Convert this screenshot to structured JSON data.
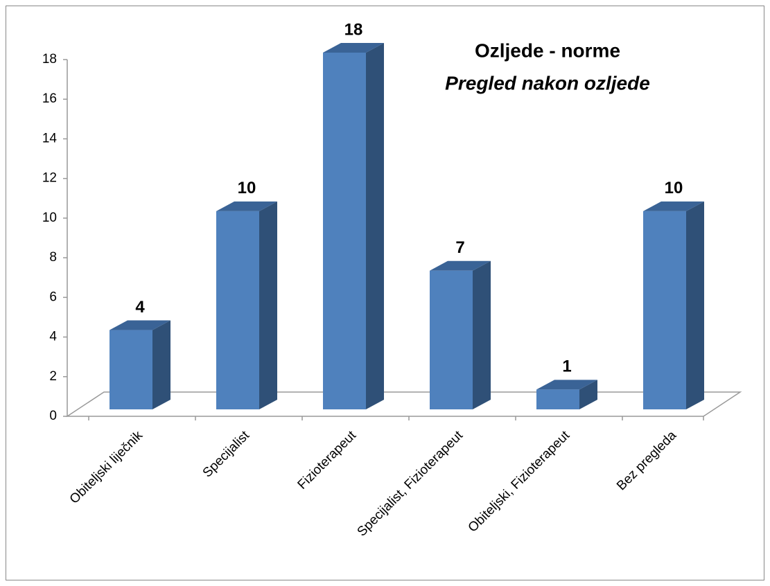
{
  "chart_data": {
    "type": "bar3d",
    "title": "Ozljede - norme",
    "subtitle": "Pregled nakon ozljede",
    "categories": [
      "Obiteljski liječnik",
      "Specijalist",
      "Fizioterapeut",
      "Specijalist, Fizioterapeut",
      "Obiteljski, Fizioterapeut",
      "Bez pregleda"
    ],
    "values": [
      4,
      10,
      18,
      7,
      1,
      10
    ],
    "color": "#4f81bd",
    "ylim": [
      0,
      18
    ],
    "yticks": [
      0,
      2,
      4,
      6,
      8,
      10,
      12,
      14,
      16,
      18
    ],
    "grid": false
  }
}
